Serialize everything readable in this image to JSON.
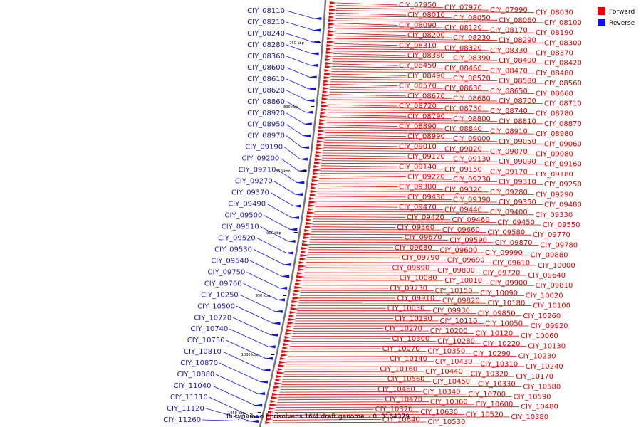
{
  "caption": "Butyrivibrio fibrisolvens 16/4 draft genome. - 0..3164379",
  "legend": [
    {
      "label": "Forward",
      "color": "#ee0000"
    },
    {
      "label": "Reverse",
      "color": "#1010ee"
    }
  ],
  "colors": {
    "forward": "#ee0000",
    "forward_label": "#dd0000",
    "reverse": "#1010ee",
    "reverse_label": "#1a1aaa",
    "backbone": "#777777"
  },
  "kbp_markers": [
    "750 kbp",
    "800 kbp",
    "850 kbp",
    "900 kbp",
    "950 kbp",
    "1000 kbp",
    "1050 kbp"
  ],
  "reverse_genes": [
    "CIY_08110",
    "CIY_08210",
    "CIY_08240",
    "CIY_08280",
    "CIY_08360",
    "CIY_08600",
    "CIY_08610",
    "CIY_08620",
    "CIY_08860",
    "CIY_08920",
    "CIY_08950",
    "CIY_08970",
    "CIY_09190",
    "CIY_09200",
    "CIY_09210",
    "CIY_09270",
    "CIY_09370",
    "CIY_09490",
    "CIY_09500",
    "CIY_09510",
    "CIY_09520",
    "CIY_09530",
    "CIY_09540",
    "CIY_09750",
    "CIY_09760",
    "CIY_10250",
    "CIY_10500",
    "CIY_10720",
    "CIY_10740",
    "CIY_10750",
    "CIY_10810",
    "CIY_10870",
    "CIY_10880",
    "CIY_11040",
    "CIY_11110",
    "CIY_11120",
    "CIY_11260"
  ],
  "forward_genes": [
    "CIY_07950",
    "CIY_07970",
    "CIY_07990",
    "CIY_08030",
    "CIY_08010",
    "CIY_08050",
    "CIY_08060",
    "CIY_08100",
    "CIY_08090",
    "CIY_08120",
    "CIY_08170",
    "CIY_08190",
    "CIY_08200",
    "CIY_08230",
    "CIY_08290",
    "CIY_08300",
    "CIY_08310",
    "CIY_08320",
    "CIY_08330",
    "CIY_08370",
    "CIY_08380",
    "CIY_08390",
    "CIY_08400",
    "CIY_08420",
    "CIY_08450",
    "CIY_08460",
    "CIY_08470",
    "CIY_08480",
    "CIY_08490",
    "CIY_08520",
    "CIY_08580",
    "CIY_08560",
    "CIY_08570",
    "CIY_08630",
    "CIY_08650",
    "CIY_08660",
    "CIY_08670",
    "CIY_08680",
    "CIY_08700",
    "CIY_08710",
    "CIY_08720",
    "CIY_08730",
    "CIY_08740",
    "CIY_08780",
    "CIY_08790",
    "CIY_08800",
    "CIY_08810",
    "CIY_08870",
    "CIY_08890",
    "CIY_08840",
    "CIY_08910",
    "CIY_08980",
    "CIY_08990",
    "CIY_09000",
    "CIY_09050",
    "CIY_09060",
    "CIY_09010",
    "CIY_09020",
    "CIY_09070",
    "CIY_09080",
    "CIY_09120",
    "CIY_09130",
    "CIY_09090",
    "CIY_09160",
    "CIY_09140",
    "CIY_09150",
    "CIY_09170",
    "CIY_09180",
    "CIY_09220",
    "CIY_09230",
    "CIY_09310",
    "CIY_09250",
    "CIY_09380",
    "CIY_09320",
    "CIY_09280",
    "CIY_09290",
    "CIY_09430",
    "CIY_09390",
    "CIY_09350",
    "CIY_09480",
    "CIY_09470",
    "CIY_09440",
    "CIY_09400",
    "CIY_09330",
    "CIY_09420",
    "CIY_09460",
    "CIY_09450",
    "CIY_09550",
    "CIY_09560",
    "CIY_09660",
    "CIY_09580",
    "CIY_09770",
    "CIY_09670",
    "CIY_09590",
    "CIY_09870",
    "CIY_09780",
    "CIY_09680",
    "CIY_09600",
    "CIY_09990",
    "CIY_09880",
    "CIY_09790",
    "CIY_09690",
    "CIY_09610",
    "CIY_10000",
    "CIY_09890",
    "CIY_09800",
    "CIY_09720",
    "CIY_09640",
    "CIY_10080",
    "CIY_10010",
    "CIY_09900",
    "CIY_09810",
    "CIY_09730",
    "CIY_10150",
    "CIY_10090",
    "CIY_10020",
    "CIY_09910",
    "CIY_09820",
    "CIY_10180",
    "CIY_10100",
    "CIY_10030",
    "CIY_09930",
    "CIY_09850",
    "CIY_10260",
    "CIY_10190",
    "CIY_10110",
    "CIY_10050",
    "CIY_09920",
    "CIY_10270",
    "CIY_10200",
    "CIY_10120",
    "CIY_10060",
    "CIY_10300",
    "CIY_10280",
    "CIY_10220",
    "CIY_10130",
    "CIY_10070",
    "CIY_10350",
    "CIY_10290",
    "CIY_10230",
    "CIY_10140",
    "CIY_10430",
    "CIY_10310",
    "CIY_10240",
    "CIY_10160",
    "CIY_10440",
    "CIY_10320",
    "CIY_10170",
    "CIY_10560",
    "CIY_10450",
    "CIY_10330",
    "CIY_10580",
    "CIY_10460",
    "CIY_10340",
    "CIY_10700",
    "CIY_10590",
    "CIY_10470",
    "CIY_10360",
    "CIY_10600",
    "CIY_10480",
    "CIY_10370",
    "CIY_10630",
    "CIY_10520",
    "CIY_10380",
    "CIY_10640",
    "CIY_10530"
  ]
}
